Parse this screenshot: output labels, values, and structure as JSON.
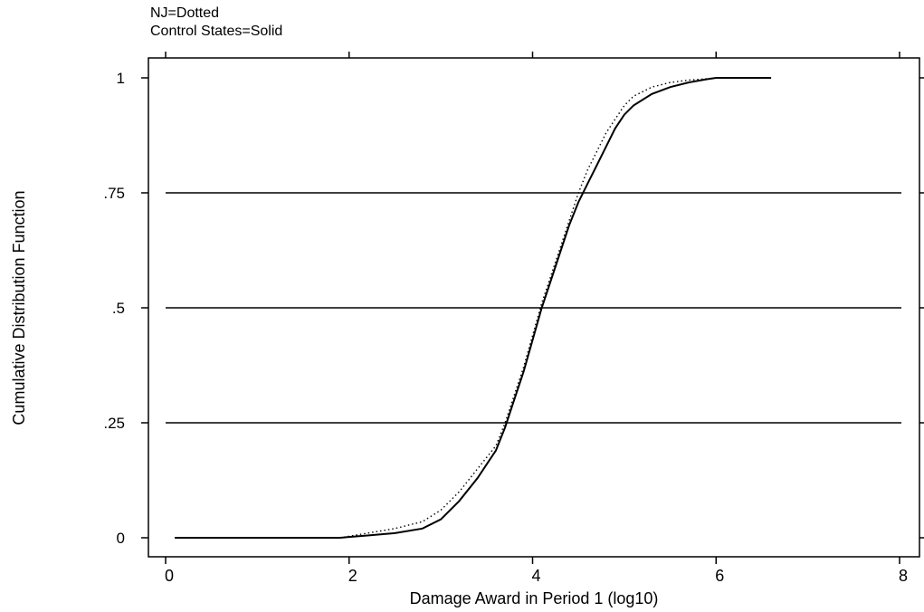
{
  "chart_data": {
    "type": "line",
    "title": "",
    "subtitle_lines": [
      "NJ=Dotted",
      "Control States=Solid"
    ],
    "xlabel": "Damage Award in Period 1 (log10)",
    "ylabel": "Cumulative Distribution Function",
    "xlim": [
      0,
      8
    ],
    "ylim": [
      0,
      1
    ],
    "x_ticks": [
      0,
      2,
      4,
      6,
      8
    ],
    "x_tick_labels": [
      "0",
      "2",
      "4",
      "6",
      "8"
    ],
    "y_ticks": [
      0,
      0.25,
      0.5,
      0.75,
      1
    ],
    "y_tick_labels": [
      "0",
      ".25",
      ".5",
      ".75",
      "1"
    ],
    "grid": "horizontal at y ticks",
    "legend": "none (encoded in subtitle text)",
    "series": [
      {
        "style": "solid",
        "color": "#000000",
        "x": [
          0.1,
          1.0,
          1.9,
          2.2,
          2.5,
          2.8,
          3.0,
          3.2,
          3.4,
          3.6,
          3.7,
          3.8,
          3.9,
          4.0,
          4.1,
          4.2,
          4.3,
          4.4,
          4.5,
          4.6,
          4.7,
          4.8,
          4.9,
          5.0,
          5.1,
          5.3,
          5.5,
          5.7,
          5.9,
          6.0,
          6.3,
          6.6
        ],
        "y": [
          0.0,
          0.0,
          0.0,
          0.005,
          0.01,
          0.02,
          0.04,
          0.08,
          0.13,
          0.19,
          0.24,
          0.3,
          0.36,
          0.43,
          0.5,
          0.56,
          0.62,
          0.68,
          0.73,
          0.77,
          0.81,
          0.85,
          0.89,
          0.92,
          0.94,
          0.965,
          0.98,
          0.99,
          0.997,
          1.0,
          1.0,
          1.0
        ]
      },
      {
        "style": "dotted",
        "color": "#000000",
        "x": [
          1.9,
          2.2,
          2.5,
          2.8,
          3.0,
          3.2,
          3.4,
          3.6,
          3.7,
          3.8,
          3.9,
          4.0,
          4.1,
          4.2,
          4.3,
          4.4,
          4.5,
          4.6,
          4.7,
          4.8,
          4.9,
          5.0,
          5.1,
          5.3,
          5.5,
          5.7,
          5.9,
          6.0
        ],
        "y": [
          0.0,
          0.01,
          0.02,
          0.035,
          0.06,
          0.1,
          0.15,
          0.2,
          0.25,
          0.31,
          0.37,
          0.44,
          0.51,
          0.57,
          0.63,
          0.69,
          0.75,
          0.8,
          0.84,
          0.88,
          0.91,
          0.94,
          0.96,
          0.98,
          0.99,
          0.995,
          0.998,
          1.0
        ]
      }
    ]
  }
}
